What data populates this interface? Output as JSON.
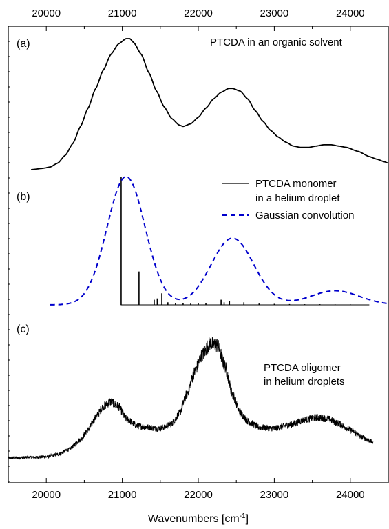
{
  "chart_data": {
    "type": "line",
    "xlabel": "Wavenumbers [cm",
    "xlabel_sup": "-1",
    "xlabel_close": "]",
    "xlim": [
      19500,
      24500
    ],
    "x_ticks": [
      20000,
      21000,
      22000,
      23000,
      24000
    ],
    "x_tick_labels": [
      "20000",
      "21000",
      "22000",
      "23000",
      "24000"
    ],
    "grid": false,
    "ticks_on_top_axis": true,
    "y_axis_labels": "none",
    "panels": [
      {
        "label": "(a)",
        "annotation": [
          "PTCDA in an organic solvent"
        ],
        "series": [
          {
            "style": "solid",
            "color": "#000000",
            "points": [
              [
                19800,
                0.0
              ],
              [
                19950,
                0.01
              ],
              [
                20050,
                0.02
              ],
              [
                20150,
                0.05
              ],
              [
                20250,
                0.11
              ],
              [
                20350,
                0.2
              ],
              [
                20450,
                0.33
              ],
              [
                20550,
                0.47
              ],
              [
                20650,
                0.62
              ],
              [
                20750,
                0.76
              ],
              [
                20850,
                0.88
              ],
              [
                20950,
                0.96
              ],
              [
                21050,
                1.0
              ],
              [
                21100,
                1.0
              ],
              [
                21150,
                0.97
              ],
              [
                21250,
                0.88
              ],
              [
                21350,
                0.74
              ],
              [
                21450,
                0.6
              ],
              [
                21550,
                0.48
              ],
              [
                21650,
                0.39
              ],
              [
                21750,
                0.34
              ],
              [
                21800,
                0.33
              ],
              [
                21900,
                0.35
              ],
              [
                22000,
                0.4
              ],
              [
                22100,
                0.47
              ],
              [
                22200,
                0.54
              ],
              [
                22300,
                0.59
              ],
              [
                22400,
                0.62
              ],
              [
                22450,
                0.62
              ],
              [
                22550,
                0.6
              ],
              [
                22650,
                0.54
              ],
              [
                22750,
                0.45
              ],
              [
                22850,
                0.37
              ],
              [
                22950,
                0.3
              ],
              [
                23050,
                0.25
              ],
              [
                23150,
                0.21
              ],
              [
                23250,
                0.18
              ],
              [
                23350,
                0.17
              ],
              [
                23450,
                0.17
              ],
              [
                23550,
                0.18
              ],
              [
                23650,
                0.19
              ],
              [
                23750,
                0.19
              ],
              [
                23850,
                0.18
              ],
              [
                23950,
                0.17
              ],
              [
                24100,
                0.14
              ],
              [
                24250,
                0.1
              ],
              [
                24350,
                0.08
              ],
              [
                24450,
                0.06
              ],
              [
                24500,
                0.05
              ]
            ]
          }
        ]
      },
      {
        "label": "(b)",
        "annotation": [],
        "legend": {
          "position": "top-right",
          "entries": [
            {
              "label_lines": [
                "PTCDA monomer",
                "in a helium droplet"
              ],
              "style": "solid",
              "color": "#000000"
            },
            {
              "label_lines": [
                "Gaussian convolution"
              ],
              "style": "dashed",
              "color": "#0000cc"
            }
          ]
        },
        "series": [
          {
            "name": "PTCDA monomer in a helium droplet",
            "type": "stick",
            "color": "#000000",
            "x_range": [
              20980,
              24250
            ],
            "sticks": [
              [
                20985,
                1.0
              ],
              [
                21220,
                0.26
              ],
              [
                21420,
                0.04
              ],
              [
                21460,
                0.05
              ],
              [
                21520,
                0.09
              ],
              [
                21600,
                0.02
              ],
              [
                21700,
                0.015
              ],
              [
                21800,
                0.012
              ],
              [
                21900,
                0.01
              ],
              [
                22000,
                0.012
              ],
              [
                22100,
                0.015
              ],
              [
                22300,
                0.04
              ],
              [
                22340,
                0.02
              ],
              [
                22410,
                0.03
              ],
              [
                22600,
                0.02
              ],
              [
                22800,
                0.01
              ],
              [
                23000,
                0.008
              ],
              [
                23200,
                0.006
              ],
              [
                23400,
                0.005
              ],
              [
                23600,
                0.005
              ],
              [
                23800,
                0.004
              ],
              [
                24000,
                0.004
              ]
            ]
          },
          {
            "name": "Gaussian convolution",
            "style": "dashed",
            "color": "#0000cc",
            "peaks": [
              [
                21050,
                1.0,
                250
              ],
              [
                22450,
                0.52,
                280
              ],
              [
                23800,
                0.11,
                320
              ]
            ],
            "x_range": [
              20050,
              24500
            ]
          }
        ]
      },
      {
        "label": "(c)",
        "annotation": [
          "PTCDA oligomer",
          "in helium droplets"
        ],
        "series": [
          {
            "style": "solid",
            "color": "#000000",
            "noisy": true,
            "x_range": [
              19500,
              24300
            ],
            "points": [
              [
                19500,
                0.0
              ],
              [
                19800,
                0.005
              ],
              [
                20000,
                0.01
              ],
              [
                20150,
                0.03
              ],
              [
                20300,
                0.07
              ],
              [
                20450,
                0.15
              ],
              [
                20550,
                0.23
              ],
              [
                20650,
                0.33
              ],
              [
                20750,
                0.42
              ],
              [
                20850,
                0.46
              ],
              [
                20950,
                0.42
              ],
              [
                21050,
                0.32
              ],
              [
                21200,
                0.26
              ],
              [
                21350,
                0.25
              ],
              [
                21450,
                0.24
              ],
              [
                21550,
                0.25
              ],
              [
                21650,
                0.28
              ],
              [
                21750,
                0.36
              ],
              [
                21850,
                0.52
              ],
              [
                21950,
                0.7
              ],
              [
                22050,
                0.84
              ],
              [
                22150,
                0.93
              ],
              [
                22250,
                0.92
              ],
              [
                22350,
                0.75
              ],
              [
                22450,
                0.52
              ],
              [
                22550,
                0.37
              ],
              [
                22650,
                0.3
              ],
              [
                22800,
                0.25
              ],
              [
                23000,
                0.24
              ],
              [
                23200,
                0.27
              ],
              [
                23400,
                0.31
              ],
              [
                23550,
                0.33
              ],
              [
                23700,
                0.32
              ],
              [
                23850,
                0.28
              ],
              [
                24000,
                0.23
              ],
              [
                24150,
                0.17
              ],
              [
                24300,
                0.13
              ]
            ]
          }
        ]
      }
    ]
  }
}
